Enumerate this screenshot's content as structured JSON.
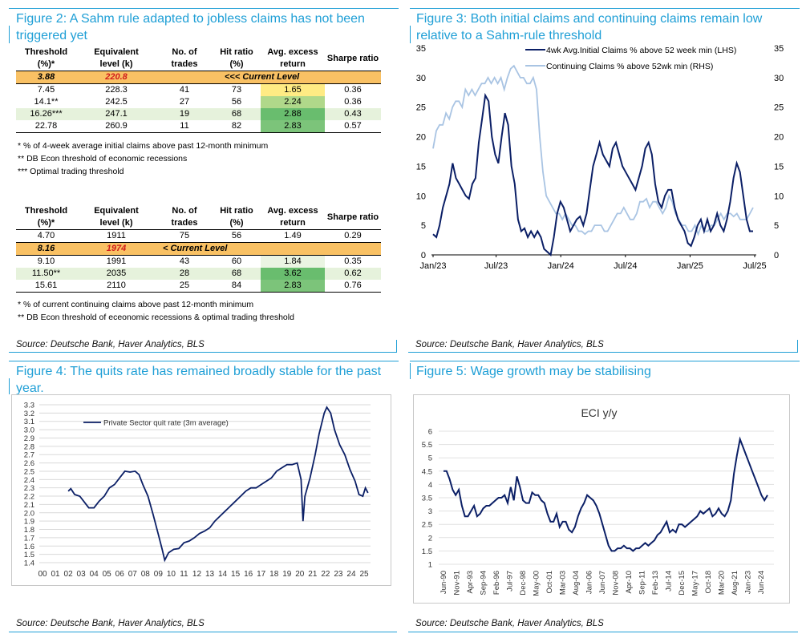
{
  "colors": {
    "accent": "#1f9fd6",
    "navy": "#0b1f66",
    "lightblue": "#a9c4e3",
    "orange": "#f9c164",
    "red": "#d11b1b"
  },
  "fig2": {
    "title": "Figure 2: A Sahm rule adapted to jobless claims has not been triggered yet",
    "table1": {
      "headers": [
        "Threshold (%)*",
        "Equivalent level (k)",
        "No. of trades",
        "Hit ratio (%)",
        "Avg. excess return",
        "Sharpe ratio"
      ],
      "current": {
        "threshold": "3.88",
        "level": "220.8",
        "label": "<<<  Current Level"
      },
      "rows": [
        [
          "7.45",
          "228.3",
          "41",
          "73",
          "1.65",
          "0.36"
        ],
        [
          "14.1**",
          "242.5",
          "27",
          "56",
          "2.24",
          "0.36"
        ],
        [
          "16.26***",
          "247.1",
          "19",
          "68",
          "2.88",
          "0.43"
        ],
        [
          "22.78",
          "260.9",
          "11",
          "82",
          "2.83",
          "0.57"
        ]
      ],
      "notes": [
        "* % of 4-week average initial claims above past 12-month minimum",
        "** DB Econ threshold of economic recessions",
        "*** Optimal trading threshold"
      ]
    },
    "table2": {
      "headers": [
        "Threshold (%)*",
        "Equivalent level (k)",
        "No. of trades",
        "Hit ratio (%)",
        "Avg. excess return",
        "Sharpe ratio"
      ],
      "first_row": [
        "4.70",
        "1911",
        "75",
        "56",
        "1.49",
        "0.29"
      ],
      "current": {
        "threshold": "8.16",
        "level": "1974",
        "label": "<  Current Level"
      },
      "rows": [
        [
          "9.10",
          "1991",
          "43",
          "60",
          "1.84",
          "0.35"
        ],
        [
          "11.50**",
          "2035",
          "28",
          "68",
          "3.62",
          "0.62"
        ],
        [
          "15.61",
          "2110",
          "25",
          "84",
          "2.83",
          "0.76"
        ]
      ],
      "notes": [
        "* % of current continuing claims above past 12-month minimum",
        "** DB Econ threshold of eceonomic recessions & optimal trading threshold"
      ]
    },
    "source": "Source: Deutsche Bank, Haver Analytics, BLS"
  },
  "fig3": {
    "title": "Figure 3: Both initial claims and continuing claims remain low relative to a Sahm-rule threshold",
    "source": "Source: Deutsche Bank, Haver Analytics, BLS"
  },
  "fig4": {
    "title": "Figure 4: The quits rate has remained broadly stable for the past year.",
    "source": "Source: Deutsche Bank, Haver Analytics, BLS"
  },
  "fig5": {
    "title": "Figure 5: Wage growth may be stabilising",
    "source": "Source: Deutsche Bank, Haver Analytics, BLS"
  },
  "chart_data": [
    {
      "id": "fig3",
      "type": "line",
      "x_ticks": [
        "Jan/23",
        "Jul/23",
        "Jan/24",
        "Jul/24",
        "Jan/25",
        "Jul/25"
      ],
      "ylim_left": [
        0,
        35
      ],
      "ylim_right": [
        0,
        35
      ],
      "y_ticks": [
        0,
        5,
        10,
        15,
        20,
        25,
        30,
        35
      ],
      "series": [
        {
          "name": "4wk Avg.Initial Claims % above 52 week min (LHS)",
          "axis": "left",
          "color": "#0b1f66",
          "values": [
            3.5,
            3,
            5,
            8,
            10,
            12,
            15.5,
            13,
            12,
            11,
            10,
            9.5,
            12,
            13,
            19,
            23,
            27,
            26,
            20,
            17,
            15.5,
            20,
            24,
            22,
            15,
            12,
            6,
            4,
            4.5,
            3,
            4,
            3,
            4,
            3,
            1,
            0.5,
            0,
            3,
            7,
            9,
            8,
            6,
            4,
            5,
            6,
            6.5,
            5,
            7,
            11,
            15,
            17,
            19,
            17,
            16,
            15,
            18,
            19,
            17,
            15,
            14,
            13,
            12,
            11,
            13,
            15,
            18,
            19,
            17,
            12,
            9,
            8,
            10,
            11,
            11,
            8,
            6,
            5,
            4,
            2,
            1.5,
            3,
            5,
            6,
            4,
            6,
            4,
            5,
            7,
            5,
            4,
            6,
            9,
            13,
            15.5,
            14,
            10,
            6,
            4,
            4
          ]
        },
        {
          "name": "Continuing Claims % above 52wk min (RHS)",
          "axis": "right",
          "color": "#a9c4e3",
          "values": [
            18,
            21,
            22,
            22,
            24,
            23,
            25,
            26,
            26,
            25,
            28,
            27,
            28,
            27,
            28,
            29,
            29,
            30,
            29,
            30,
            29,
            30,
            28,
            30,
            31.5,
            32,
            31,
            30,
            30,
            29,
            29,
            30,
            28,
            20,
            14,
            10,
            9,
            8,
            7,
            7,
            6,
            7,
            6,
            5,
            5,
            4,
            4,
            3.5,
            4,
            4,
            5,
            5,
            5,
            4,
            4,
            5,
            6,
            7,
            7,
            8,
            7,
            6,
            6,
            7,
            9,
            9,
            9.5,
            8,
            9,
            9,
            8,
            7,
            8,
            10,
            9,
            7,
            6,
            5,
            5,
            4,
            4,
            5,
            3.5,
            5,
            4,
            4,
            5,
            5,
            6,
            7,
            6,
            7,
            7,
            6.5,
            7,
            6,
            6,
            6,
            7,
            8
          ]
        }
      ]
    },
    {
      "id": "fig4",
      "type": "line",
      "x_ticks": [
        "00",
        "01",
        "02",
        "03",
        "04",
        "05",
        "06",
        "07",
        "08",
        "09",
        "10",
        "11",
        "12",
        "13",
        "14",
        "15",
        "16",
        "17",
        "18",
        "19",
        "20",
        "21",
        "22",
        "23",
        "24",
        "25"
      ],
      "ylim": [
        1.4,
        3.3
      ],
      "y_ticks": [
        "3.3",
        "3.2",
        "3.1",
        "3.0",
        "2.9",
        "2.8",
        "2.7",
        "2.6",
        "2.5",
        "2.4",
        "2.3",
        "2.2",
        "2.1",
        "2.0",
        "1.9",
        "1.8",
        "1.7",
        "1.6",
        "1.5",
        "1.4"
      ],
      "legend": "Private Sector quit rate (3m average)",
      "series": [
        {
          "name": "Private Sector quit rate (3m average)",
          "color": "#0b1f66",
          "points": [
            [
              2.0,
              2.26
            ],
            [
              2.2,
              2.29
            ],
            [
              2.5,
              2.22
            ],
            [
              2.9,
              2.2
            ],
            [
              3.2,
              2.14
            ],
            [
              3.6,
              2.06
            ],
            [
              4.0,
              2.06
            ],
            [
              4.4,
              2.14
            ],
            [
              4.8,
              2.2
            ],
            [
              5.2,
              2.3
            ],
            [
              5.6,
              2.34
            ],
            [
              6.0,
              2.42
            ],
            [
              6.4,
              2.5
            ],
            [
              6.8,
              2.49
            ],
            [
              7.2,
              2.5
            ],
            [
              7.5,
              2.46
            ],
            [
              7.8,
              2.34
            ],
            [
              8.2,
              2.2
            ],
            [
              8.6,
              1.98
            ],
            [
              9.0,
              1.74
            ],
            [
              9.3,
              1.56
            ],
            [
              9.5,
              1.43
            ],
            [
              9.8,
              1.52
            ],
            [
              10.2,
              1.56
            ],
            [
              10.6,
              1.57
            ],
            [
              11.0,
              1.64
            ],
            [
              11.4,
              1.66
            ],
            [
              11.8,
              1.7
            ],
            [
              12.2,
              1.75
            ],
            [
              12.6,
              1.78
            ],
            [
              13.0,
              1.82
            ],
            [
              13.4,
              1.9
            ],
            [
              13.8,
              1.96
            ],
            [
              14.2,
              2.02
            ],
            [
              14.6,
              2.08
            ],
            [
              15.0,
              2.14
            ],
            [
              15.4,
              2.2
            ],
            [
              15.8,
              2.26
            ],
            [
              16.2,
              2.3
            ],
            [
              16.6,
              2.3
            ],
            [
              17.0,
              2.34
            ],
            [
              17.4,
              2.38
            ],
            [
              17.8,
              2.42
            ],
            [
              18.2,
              2.5
            ],
            [
              18.6,
              2.54
            ],
            [
              19.0,
              2.58
            ],
            [
              19.4,
              2.58
            ],
            [
              19.8,
              2.6
            ],
            [
              20.1,
              2.4
            ],
            [
              20.25,
              1.9
            ],
            [
              20.4,
              2.2
            ],
            [
              20.8,
              2.42
            ],
            [
              21.2,
              2.7
            ],
            [
              21.5,
              2.95
            ],
            [
              21.9,
              3.2
            ],
            [
              22.1,
              3.27
            ],
            [
              22.4,
              3.2
            ],
            [
              22.7,
              3.0
            ],
            [
              23.1,
              2.82
            ],
            [
              23.5,
              2.7
            ],
            [
              23.9,
              2.52
            ],
            [
              24.3,
              2.38
            ],
            [
              24.6,
              2.22
            ],
            [
              24.9,
              2.2
            ],
            [
              25.1,
              2.3
            ],
            [
              25.3,
              2.24
            ]
          ]
        }
      ]
    },
    {
      "id": "fig5",
      "type": "line",
      "title": "ECI y/y",
      "x_ticks": [
        "Jun-90",
        "Nov-91",
        "Apr-93",
        "Sep-94",
        "Feb-96",
        "Jul-97",
        "Dec-98",
        "May-00",
        "Oct-01",
        "Mar-03",
        "Aug-04",
        "Jan-06",
        "Jun-07",
        "Nov-08",
        "Apr-10",
        "Sep-11",
        "Feb-13",
        "Jul-14",
        "Dec-15",
        "May-17",
        "Oct-18",
        "Mar-20",
        "Aug-21",
        "Jan-23",
        "Jun-24"
      ],
      "ylim": [
        1,
        6
      ],
      "y_ticks": [
        "6",
        "5.5",
        "5",
        "4.5",
        "4",
        "3.5",
        "3",
        "2.5",
        "2",
        "1.5",
        "1"
      ],
      "series": [
        {
          "name": "ECI y/y",
          "color": "#0b1f66",
          "values": [
            4.5,
            4.5,
            4.2,
            3.8,
            3.6,
            3.8,
            3.2,
            2.8,
            2.8,
            3,
            3.2,
            2.8,
            2.9,
            3.1,
            3.2,
            3.2,
            3.3,
            3.4,
            3.5,
            3.5,
            3.6,
            3.3,
            3.9,
            3.4,
            4.3,
            3.9,
            3.4,
            3.3,
            3.3,
            3.7,
            3.6,
            3.6,
            3.4,
            3.3,
            2.9,
            2.6,
            2.6,
            2.9,
            2.4,
            2.6,
            2.6,
            2.3,
            2.2,
            2.4,
            2.8,
            3.1,
            3.3,
            3.6,
            3.5,
            3.4,
            3.2,
            2.9,
            2.5,
            2.1,
            1.7,
            1.5,
            1.5,
            1.6,
            1.6,
            1.7,
            1.6,
            1.6,
            1.5,
            1.6,
            1.6,
            1.7,
            1.8,
            1.7,
            1.8,
            1.9,
            2.1,
            2.2,
            2.4,
            2.6,
            2.2,
            2.3,
            2.2,
            2.5,
            2.5,
            2.4,
            2.5,
            2.6,
            2.7,
            2.8,
            3.0,
            2.9,
            3.0,
            3.1,
            2.8,
            2.9,
            3.1,
            2.9,
            2.8,
            3,
            3.4,
            4.4,
            5.1,
            5.7,
            5.4,
            5.1,
            4.8,
            4.5,
            4.2,
            3.9,
            3.6,
            3.4,
            3.6
          ]
        }
      ]
    }
  ]
}
